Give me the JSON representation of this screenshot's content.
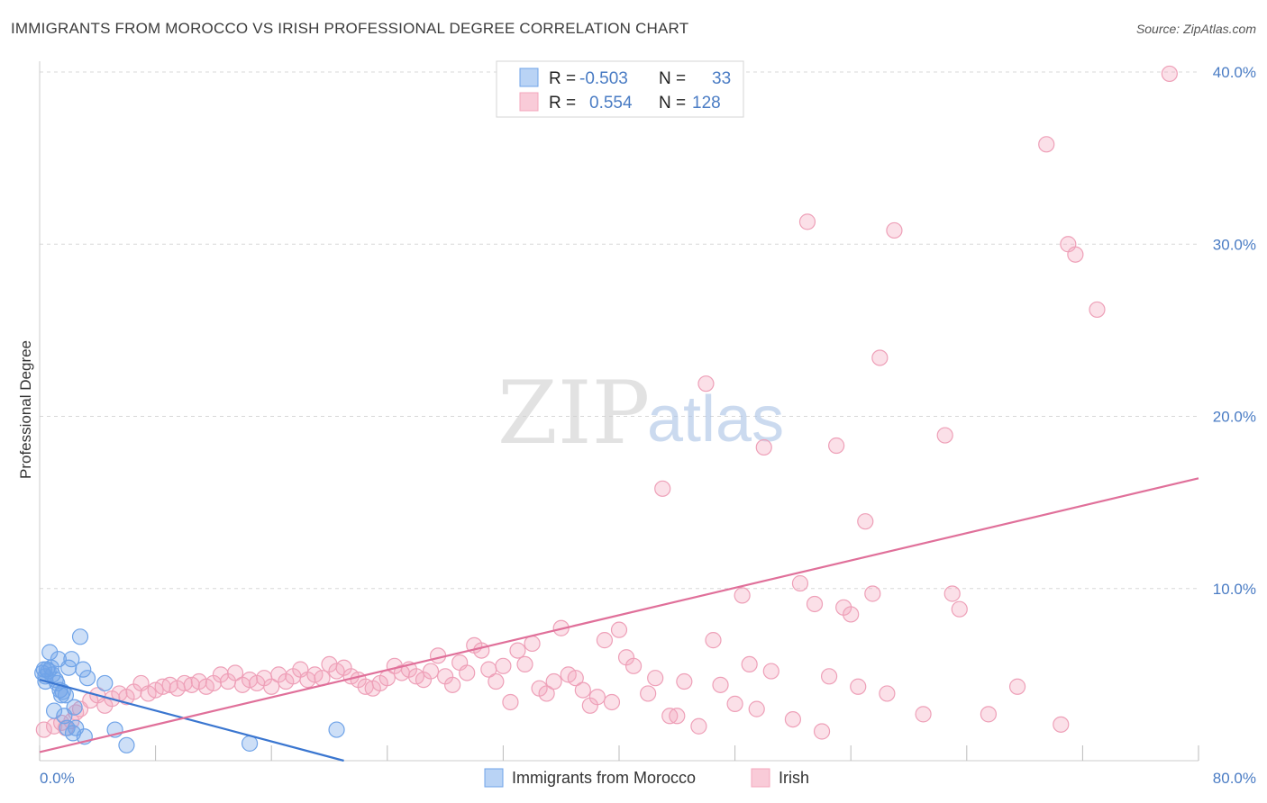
{
  "title": "IMMIGRANTS FROM MOROCCO VS IRISH PROFESSIONAL DEGREE CORRELATION CHART",
  "source": "Source: ZipAtlas.com",
  "watermark": {
    "zip": "ZIP",
    "atlas": "atlas"
  },
  "colors": {
    "blue": "#6fa3e8",
    "blue_line": "#3a76d0",
    "pink": "#f4a7bd",
    "pink_line": "#e0709a",
    "grid": "#d8d8d8",
    "tick": "#4a7cc4"
  },
  "legend": {
    "rows": [
      {
        "r_label": "R =",
        "r_value": "-0.503",
        "n_label": "N =",
        "n_value": "33"
      },
      {
        "r_label": "R =",
        "r_value": "0.554",
        "n_label": "N =",
        "n_value": "128"
      }
    ]
  },
  "bottom_legend": {
    "series1": "Immigrants from Morocco",
    "series2": "Irish"
  },
  "chart_data": {
    "type": "scatter",
    "title": "IMMIGRANTS FROM MOROCCO VS IRISH PROFESSIONAL DEGREE CORRELATION CHART",
    "xlabel": "",
    "ylabel": "Professional Degree",
    "xlim": [
      0,
      80
    ],
    "ylim": [
      0,
      40
    ],
    "x_tick_labels": [
      "0.0%",
      "80.0%"
    ],
    "y_tick_labels": [
      "10.0%",
      "20.0%",
      "30.0%",
      "40.0%"
    ],
    "y_ticks": [
      10,
      20,
      30,
      40
    ],
    "series": [
      {
        "name": "Immigrants from Morocco",
        "color": "#6fa3e8",
        "trend": {
          "x": [
            0,
            21
          ],
          "y": [
            4.7,
            0
          ]
        },
        "points": [
          [
            0.2,
            5.1
          ],
          [
            0.3,
            5.3
          ],
          [
            0.4,
            4.9
          ],
          [
            0.5,
            5.3
          ],
          [
            0.6,
            5.2
          ],
          [
            0.7,
            6.3
          ],
          [
            0.8,
            5.4
          ],
          [
            0.9,
            5.0
          ],
          [
            1.0,
            2.9
          ],
          [
            1.1,
            4.7
          ],
          [
            1.2,
            4.5
          ],
          [
            1.3,
            5.9
          ],
          [
            1.4,
            4.1
          ],
          [
            1.5,
            3.8
          ],
          [
            1.6,
            4.0
          ],
          [
            1.7,
            2.6
          ],
          [
            1.8,
            3.8
          ],
          [
            1.9,
            1.9
          ],
          [
            2.0,
            5.4
          ],
          [
            2.2,
            5.9
          ],
          [
            2.3,
            1.6
          ],
          [
            2.4,
            3.1
          ],
          [
            2.5,
            1.9
          ],
          [
            2.8,
            7.2
          ],
          [
            3.0,
            5.3
          ],
          [
            3.1,
            1.4
          ],
          [
            3.3,
            4.8
          ],
          [
            4.5,
            4.5
          ],
          [
            5.2,
            1.8
          ],
          [
            6.0,
            0.9
          ],
          [
            14.5,
            1.0
          ],
          [
            20.5,
            1.8
          ],
          [
            0.4,
            4.6
          ]
        ]
      },
      {
        "name": "Irish",
        "color": "#f4a7bd",
        "trend": {
          "x": [
            0,
            80
          ],
          "y": [
            0.5,
            16.4
          ]
        },
        "points": [
          [
            0.3,
            1.8
          ],
          [
            1.0,
            2.0
          ],
          [
            1.5,
            2.2
          ],
          [
            1.8,
            1.9
          ],
          [
            2.2,
            2.3
          ],
          [
            2.5,
            2.8
          ],
          [
            2.8,
            3.0
          ],
          [
            3.5,
            3.5
          ],
          [
            4.0,
            3.8
          ],
          [
            4.5,
            3.2
          ],
          [
            5.0,
            3.6
          ],
          [
            5.5,
            3.9
          ],
          [
            6.0,
            3.7
          ],
          [
            6.5,
            4.0
          ],
          [
            7.0,
            4.5
          ],
          [
            7.5,
            3.9
          ],
          [
            8.0,
            4.1
          ],
          [
            8.5,
            4.3
          ],
          [
            9.0,
            4.4
          ],
          [
            9.5,
            4.2
          ],
          [
            10.0,
            4.5
          ],
          [
            10.5,
            4.4
          ],
          [
            11.0,
            4.6
          ],
          [
            11.5,
            4.3
          ],
          [
            12.0,
            4.5
          ],
          [
            12.5,
            5.0
          ],
          [
            13.0,
            4.6
          ],
          [
            13.5,
            5.1
          ],
          [
            14.0,
            4.4
          ],
          [
            14.5,
            4.7
          ],
          [
            15.0,
            4.5
          ],
          [
            15.5,
            4.8
          ],
          [
            16.0,
            4.3
          ],
          [
            16.5,
            5.0
          ],
          [
            17.0,
            4.6
          ],
          [
            17.5,
            4.9
          ],
          [
            18.0,
            5.3
          ],
          [
            18.5,
            4.7
          ],
          [
            19.0,
            5.0
          ],
          [
            19.5,
            4.8
          ],
          [
            20.0,
            5.6
          ],
          [
            20.5,
            5.2
          ],
          [
            21.0,
            5.4
          ],
          [
            21.5,
            4.9
          ],
          [
            22.0,
            4.7
          ],
          [
            22.5,
            4.3
          ],
          [
            23.0,
            4.2
          ],
          [
            23.5,
            4.5
          ],
          [
            24.0,
            4.8
          ],
          [
            24.5,
            5.5
          ],
          [
            25.0,
            5.1
          ],
          [
            25.5,
            5.3
          ],
          [
            26.0,
            4.9
          ],
          [
            26.5,
            4.7
          ],
          [
            27.0,
            5.2
          ],
          [
            27.5,
            6.1
          ],
          [
            28.0,
            4.9
          ],
          [
            28.5,
            4.4
          ],
          [
            29.0,
            5.7
          ],
          [
            29.5,
            5.1
          ],
          [
            30.0,
            6.7
          ],
          [
            30.5,
            6.4
          ],
          [
            31.0,
            5.3
          ],
          [
            31.5,
            4.6
          ],
          [
            32.0,
            5.5
          ],
          [
            32.5,
            3.4
          ],
          [
            33.0,
            6.4
          ],
          [
            33.5,
            5.6
          ],
          [
            34.0,
            6.8
          ],
          [
            34.5,
            4.2
          ],
          [
            35.0,
            3.9
          ],
          [
            35.5,
            4.6
          ],
          [
            36.0,
            7.7
          ],
          [
            36.5,
            5.0
          ],
          [
            37.0,
            4.8
          ],
          [
            37.5,
            4.1
          ],
          [
            38.0,
            3.2
          ],
          [
            38.5,
            3.7
          ],
          [
            39.0,
            7.0
          ],
          [
            39.5,
            3.4
          ],
          [
            40.0,
            7.6
          ],
          [
            40.5,
            6.0
          ],
          [
            41.0,
            5.5
          ],
          [
            42.0,
            3.9
          ],
          [
            42.5,
            4.8
          ],
          [
            43.0,
            15.8
          ],
          [
            43.5,
            2.6
          ],
          [
            44.0,
            2.6
          ],
          [
            44.5,
            4.6
          ],
          [
            45.5,
            2.0
          ],
          [
            46.0,
            21.9
          ],
          [
            46.5,
            7.0
          ],
          [
            47.0,
            4.4
          ],
          [
            48.0,
            3.3
          ],
          [
            48.5,
            9.6
          ],
          [
            49.0,
            5.6
          ],
          [
            49.5,
            3.0
          ],
          [
            50.0,
            18.2
          ],
          [
            50.5,
            5.2
          ],
          [
            52.0,
            2.4
          ],
          [
            52.5,
            10.3
          ],
          [
            53.0,
            31.3
          ],
          [
            53.5,
            9.1
          ],
          [
            54.0,
            1.7
          ],
          [
            54.5,
            4.9
          ],
          [
            55.0,
            18.3
          ],
          [
            55.5,
            8.9
          ],
          [
            56.0,
            8.5
          ],
          [
            56.5,
            4.3
          ],
          [
            57.0,
            13.9
          ],
          [
            57.5,
            9.7
          ],
          [
            58.0,
            23.4
          ],
          [
            58.5,
            3.9
          ],
          [
            59.0,
            30.8
          ],
          [
            61.0,
            2.7
          ],
          [
            62.5,
            18.9
          ],
          [
            63.0,
            9.7
          ],
          [
            63.5,
            8.8
          ],
          [
            65.5,
            2.7
          ],
          [
            67.5,
            4.3
          ],
          [
            69.5,
            35.8
          ],
          [
            70.5,
            2.1
          ],
          [
            71.0,
            30.0
          ],
          [
            71.5,
            29.4
          ],
          [
            73.0,
            26.2
          ],
          [
            78.0,
            39.9
          ]
        ]
      }
    ]
  }
}
